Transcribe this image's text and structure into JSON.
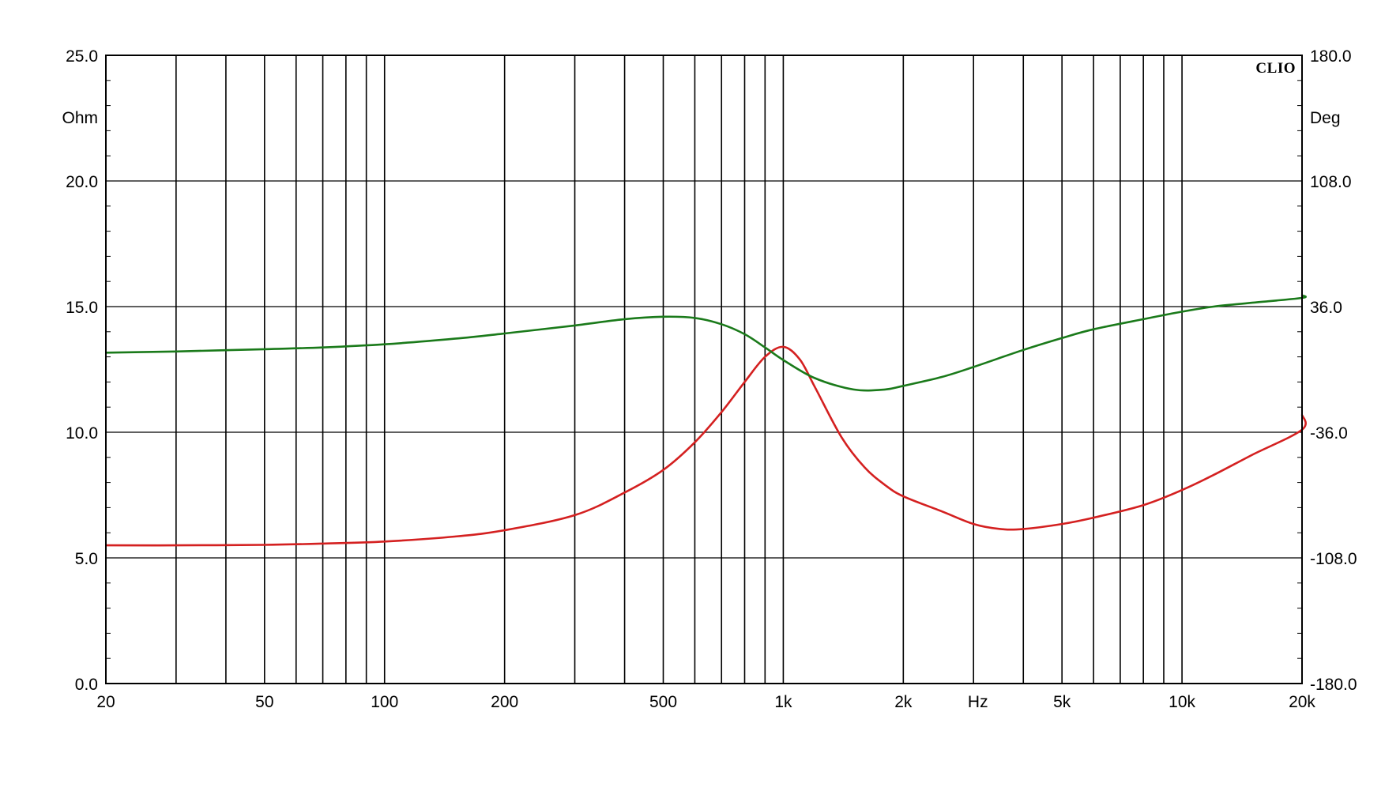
{
  "chart_data": {
    "type": "line",
    "brand": "CLIO",
    "xlabel": "Hz",
    "ylabel_left": "Ohm",
    "ylabel_right": "Deg",
    "x_scale": "log",
    "xlim": [
      20,
      20000
    ],
    "ylim_left": [
      0,
      25
    ],
    "ylim_right": [
      -180,
      180
    ],
    "grid": true,
    "x_tick_labels": [
      {
        "value": 20,
        "label": "20"
      },
      {
        "value": 50,
        "label": "50"
      },
      {
        "value": 100,
        "label": "100"
      },
      {
        "value": 200,
        "label": "200"
      },
      {
        "value": 500,
        "label": "500"
      },
      {
        "value": 1000,
        "label": "1k"
      },
      {
        "value": 2000,
        "label": "2k"
      },
      {
        "value": 5000,
        "label": "5k"
      },
      {
        "value": 10000,
        "label": "10k"
      },
      {
        "value": 20000,
        "label": "20k"
      }
    ],
    "y_left_ticks": [
      {
        "value": 0,
        "label": "0.0"
      },
      {
        "value": 5,
        "label": "5.0"
      },
      {
        "value": 10,
        "label": "10.0"
      },
      {
        "value": 15,
        "label": "15.0"
      },
      {
        "value": 20,
        "label": "20.0"
      },
      {
        "value": 25,
        "label": "25.0"
      }
    ],
    "y_right_ticks": [
      {
        "value": -180,
        "label": "-180.0"
      },
      {
        "value": -108,
        "label": "-108.0"
      },
      {
        "value": -36,
        "label": "-36.0"
      },
      {
        "value": 36,
        "label": "36.0"
      },
      {
        "value": 108,
        "label": "108.0"
      },
      {
        "value": 180,
        "label": "180.0"
      }
    ],
    "series": [
      {
        "axis": "left",
        "color": "#d42020",
        "points": [
          [
            20,
            5.5
          ],
          [
            30,
            5.5
          ],
          [
            50,
            5.52
          ],
          [
            70,
            5.57
          ],
          [
            100,
            5.65
          ],
          [
            150,
            5.85
          ],
          [
            200,
            6.1
          ],
          [
            300,
            6.7
          ],
          [
            400,
            7.6
          ],
          [
            500,
            8.5
          ],
          [
            600,
            9.6
          ],
          [
            700,
            10.8
          ],
          [
            800,
            12.0
          ],
          [
            900,
            13.0
          ],
          [
            1000,
            13.4
          ],
          [
            1100,
            12.9
          ],
          [
            1200,
            11.8
          ],
          [
            1400,
            9.8
          ],
          [
            1600,
            8.6
          ],
          [
            1800,
            7.9
          ],
          [
            2000,
            7.45
          ],
          [
            2500,
            6.85
          ],
          [
            3000,
            6.35
          ],
          [
            3500,
            6.15
          ],
          [
            4000,
            6.15
          ],
          [
            5000,
            6.35
          ],
          [
            6000,
            6.6
          ],
          [
            8000,
            7.1
          ],
          [
            10000,
            7.7
          ],
          [
            12000,
            8.3
          ],
          [
            15000,
            9.1
          ],
          [
            20000,
            10.1
          ],
          [
            22000,
            10.7
          ]
        ]
      },
      {
        "axis": "right",
        "color": "#1a7a1a",
        "points": [
          [
            20,
            9.6
          ],
          [
            30,
            10.3
          ],
          [
            50,
            11.6
          ],
          [
            70,
            12.6
          ],
          [
            100,
            14.4
          ],
          [
            150,
            17.6
          ],
          [
            200,
            20.6
          ],
          [
            300,
            25.2
          ],
          [
            400,
            28.8
          ],
          [
            500,
            30.2
          ],
          [
            600,
            29.5
          ],
          [
            700,
            25.9
          ],
          [
            800,
            20.2
          ],
          [
            900,
            12.6
          ],
          [
            1000,
            5.4
          ],
          [
            1200,
            -5.0
          ],
          [
            1500,
            -11.5
          ],
          [
            1800,
            -11.5
          ],
          [
            2000,
            -9.4
          ],
          [
            2500,
            -4.3
          ],
          [
            3000,
            1.4
          ],
          [
            4000,
            11.2
          ],
          [
            5000,
            18.0
          ],
          [
            6000,
            23.0
          ],
          [
            8000,
            28.8
          ],
          [
            10000,
            33.1
          ],
          [
            12000,
            36.0
          ],
          [
            15000,
            38.2
          ],
          [
            20000,
            41.0
          ],
          [
            22000,
            42.5
          ]
        ]
      }
    ]
  }
}
